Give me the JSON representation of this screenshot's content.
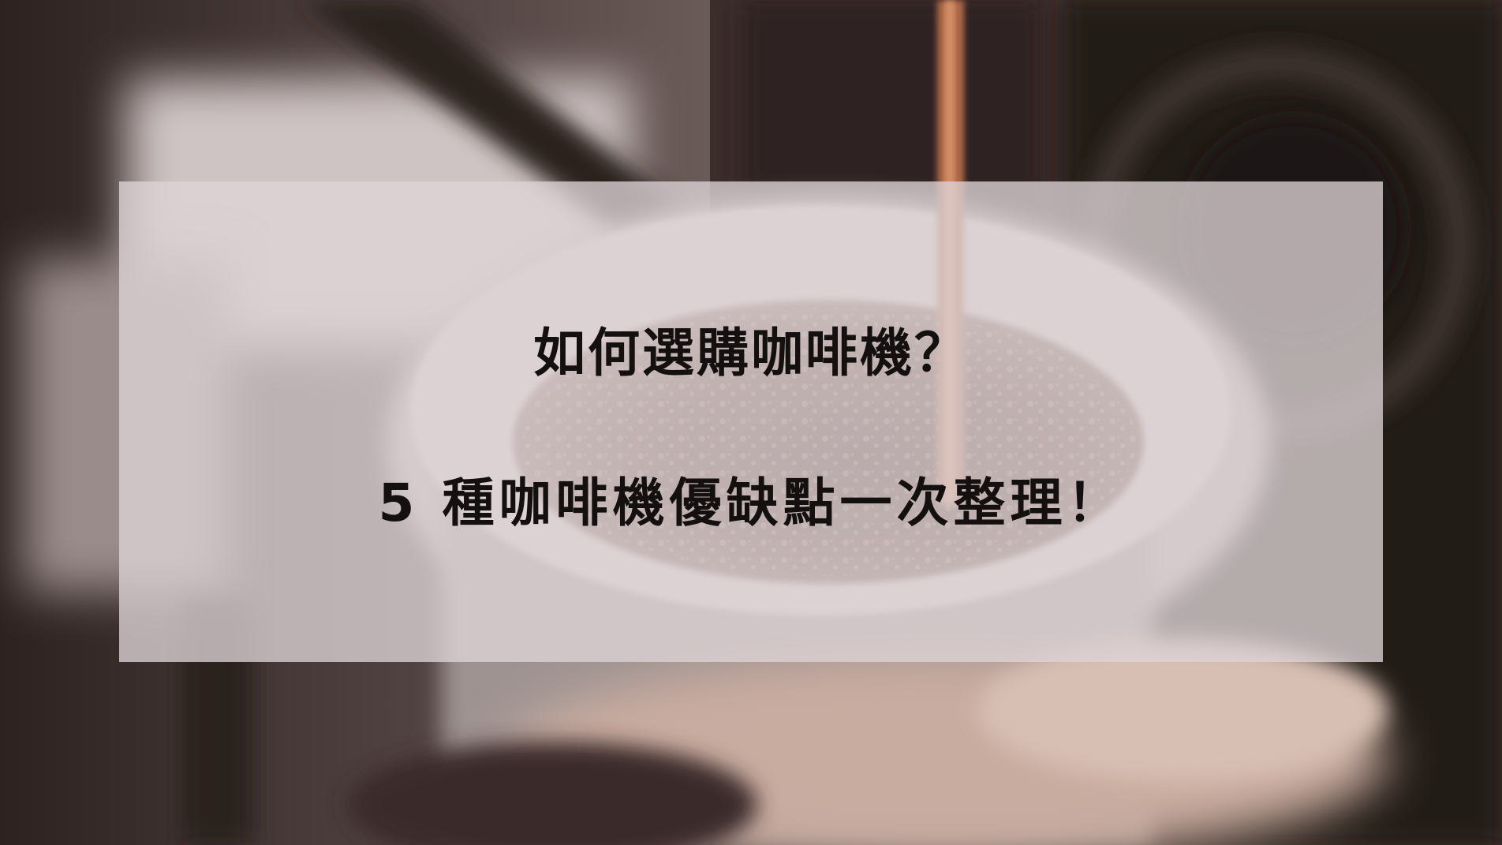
{
  "banner": {
    "title_line_1": "如何選購咖啡機？",
    "title_line_2": "5 種咖啡機優缺點一次整理！"
  },
  "colors": {
    "overlay": "#ded4d6",
    "text": "#141010",
    "background_dark": "#2a1e1c"
  }
}
